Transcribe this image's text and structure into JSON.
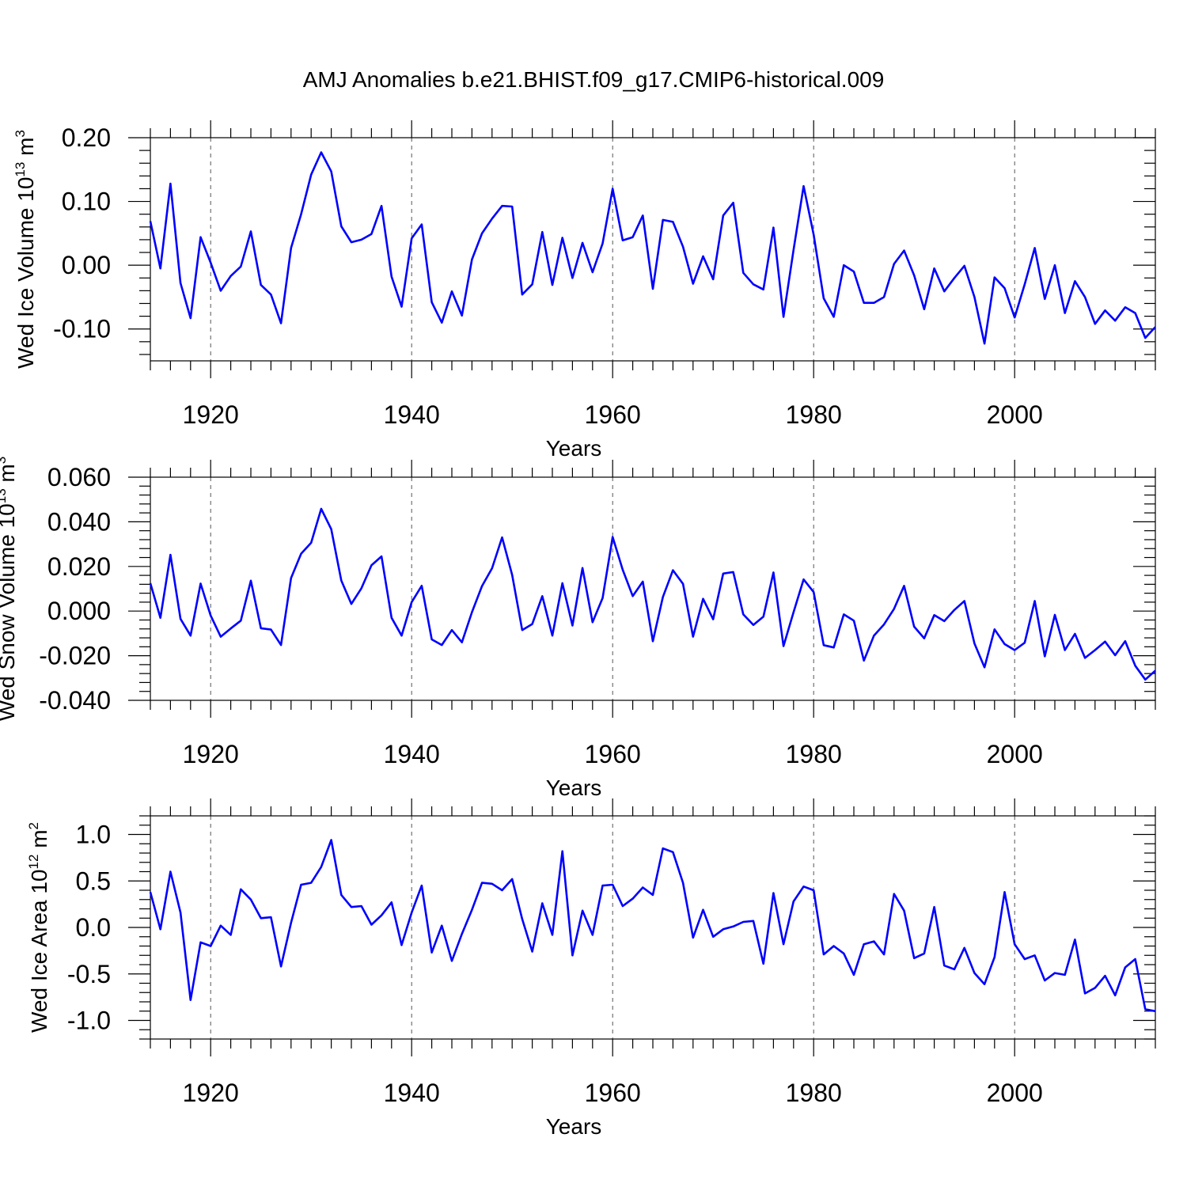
{
  "figure": {
    "title": "AMJ Anomalies b.e21.BHIST.f09_g17.CMIP6-historical.009"
  },
  "chart_data": [
    {
      "type": "line",
      "title": "AMJ Anomalies b.e21.BHIST.f09_g17.CMIP6-historical.009",
      "xlabel": "Years",
      "ylabel": "Wed Ice Volume 10",
      "ylabel_exp": "13",
      "ylabel_unit": " m",
      "ylabel_unit_exp": "3",
      "xlim": [
        1914,
        2014
      ],
      "ylim": [
        -0.15,
        0.2
      ],
      "yticks": [
        -0.1,
        0.0,
        0.1,
        0.2
      ],
      "ytick_labels": [
        "-0.10",
        "0.00",
        "0.10",
        "0.20"
      ],
      "xticks": [
        1920,
        1940,
        1960,
        1980,
        2000
      ],
      "xtick_labels": [
        "1920",
        "1940",
        "1960",
        "1980",
        "2000"
      ],
      "grid_years": [
        1920,
        1940,
        1960,
        1980,
        2000
      ],
      "color": "#0000ff",
      "x_start": 1914,
      "values": [
        0.069,
        -0.005,
        0.128,
        -0.028,
        -0.083,
        0.044,
        0.004,
        -0.04,
        -0.017,
        -0.002,
        0.053,
        -0.031,
        -0.046,
        -0.091,
        0.027,
        0.08,
        0.142,
        0.177,
        0.147,
        0.061,
        0.036,
        0.04,
        0.049,
        0.093,
        -0.018,
        -0.065,
        0.042,
        0.064,
        -0.058,
        -0.09,
        -0.041,
        -0.079,
        0.009,
        0.05,
        0.073,
        0.093,
        0.092,
        -0.046,
        -0.03,
        0.052,
        -0.031,
        0.043,
        -0.02,
        0.035,
        -0.011,
        0.034,
        0.12,
        0.039,
        0.044,
        0.078,
        -0.037,
        0.071,
        0.068,
        0.029,
        -0.029,
        0.014,
        -0.022,
        0.078,
        0.098,
        -0.012,
        -0.03,
        -0.038,
        0.059,
        -0.081,
        0.024,
        0.124,
        0.048,
        -0.052,
        -0.081,
        0.0,
        -0.01,
        -0.059,
        -0.059,
        -0.05,
        0.002,
        0.023,
        -0.016,
        -0.069,
        -0.005,
        -0.041,
        -0.02,
        -0.001,
        -0.05,
        -0.123,
        -0.019,
        -0.036,
        -0.082,
        -0.03,
        0.027,
        -0.053,
        0.0,
        -0.075,
        -0.025,
        -0.05,
        -0.092,
        -0.071,
        -0.087,
        -0.066,
        -0.075,
        -0.114,
        -0.097
      ]
    },
    {
      "type": "line",
      "xlabel": "Years",
      "ylabel": "Wed Snow Volume 10",
      "ylabel_exp": "13",
      "ylabel_unit": " m",
      "ylabel_unit_exp": "3",
      "xlim": [
        1914,
        2014
      ],
      "ylim": [
        -0.04,
        0.06
      ],
      "yticks": [
        -0.04,
        -0.02,
        0.0,
        0.02,
        0.04,
        0.06
      ],
      "ytick_labels": [
        "-0.040",
        "-0.020",
        "0.000",
        "0.020",
        "0.040",
        "0.060"
      ],
      "xticks": [
        1920,
        1940,
        1960,
        1980,
        2000
      ],
      "xtick_labels": [
        "1920",
        "1940",
        "1960",
        "1980",
        "2000"
      ],
      "grid_years": [
        1920,
        1940,
        1960,
        1980,
        2000
      ],
      "color": "#0000ff",
      "x_start": 1914,
      "values": [
        0.0125,
        -0.003,
        0.0252,
        -0.0035,
        -0.011,
        0.0123,
        -0.002,
        -0.0115,
        -0.0078,
        -0.0043,
        0.0136,
        -0.0077,
        -0.0083,
        -0.0152,
        0.0148,
        0.0257,
        0.0306,
        0.0458,
        0.0367,
        0.0137,
        0.0032,
        0.0102,
        0.0205,
        0.0245,
        -0.003,
        -0.011,
        0.004,
        0.0113,
        -0.0127,
        -0.0152,
        -0.0085,
        -0.014,
        -0.0005,
        0.0112,
        0.0192,
        0.033,
        0.0162,
        -0.0085,
        -0.0058,
        0.0067,
        -0.011,
        0.0125,
        -0.0065,
        0.0193,
        -0.005,
        0.0058,
        0.0332,
        0.0185,
        0.0067,
        0.0132,
        -0.0135,
        0.0063,
        0.0183,
        0.0122,
        -0.0115,
        0.0055,
        -0.0037,
        0.0168,
        0.0175,
        -0.0015,
        -0.0062,
        -0.0025,
        0.0173,
        -0.0157,
        -0.0005,
        0.0142,
        0.0085,
        -0.0153,
        -0.0163,
        -0.0015,
        -0.0043,
        -0.0222,
        -0.011,
        -0.006,
        0.001,
        0.0113,
        -0.007,
        -0.0122,
        -0.0018,
        -0.0045,
        0.0005,
        0.0045,
        -0.0145,
        -0.0252,
        -0.0082,
        -0.0148,
        -0.0175,
        -0.0142,
        0.0045,
        -0.0203,
        -0.0017,
        -0.0175,
        -0.0102,
        -0.021,
        -0.0175,
        -0.0137,
        -0.0198,
        -0.0135,
        -0.0245,
        -0.0307,
        -0.0267
      ]
    },
    {
      "type": "line",
      "xlabel": "Years",
      "ylabel": "Wed Ice Area 10",
      "ylabel_exp": "12",
      "ylabel_unit": " m",
      "ylabel_unit_exp": "2",
      "xlim": [
        1914,
        2014
      ],
      "ylim": [
        -1.2,
        1.2
      ],
      "yticks": [
        -1.0,
        -0.5,
        0.0,
        0.5,
        1.0
      ],
      "ytick_labels": [
        "-1.0",
        "-0.5",
        "0.0",
        "0.5",
        "1.0"
      ],
      "xticks": [
        1920,
        1940,
        1960,
        1980,
        2000
      ],
      "xtick_labels": [
        "1920",
        "1940",
        "1960",
        "1980",
        "2000"
      ],
      "grid_years": [
        1920,
        1940,
        1960,
        1980,
        2000
      ],
      "color": "#0000ff",
      "x_start": 1914,
      "values": [
        0.38,
        -0.02,
        0.6,
        0.16,
        -0.78,
        -0.16,
        -0.2,
        0.02,
        -0.08,
        0.41,
        0.3,
        0.1,
        0.11,
        -0.42,
        0.05,
        0.46,
        0.48,
        0.65,
        0.94,
        0.35,
        0.22,
        0.23,
        0.03,
        0.13,
        0.27,
        -0.19,
        0.16,
        0.45,
        -0.27,
        0.02,
        -0.36,
        -0.07,
        0.19,
        0.48,
        0.47,
        0.4,
        0.52,
        0.09,
        -0.26,
        0.26,
        -0.08,
        0.82,
        -0.3,
        0.18,
        -0.08,
        0.45,
        0.46,
        0.23,
        0.31,
        0.43,
        0.35,
        0.85,
        0.81,
        0.48,
        -0.11,
        0.19,
        -0.1,
        -0.02,
        0.01,
        0.06,
        0.07,
        -0.39,
        0.37,
        -0.18,
        0.28,
        0.44,
        0.4,
        -0.29,
        -0.2,
        -0.28,
        -0.51,
        -0.18,
        -0.15,
        -0.29,
        0.36,
        0.18,
        -0.33,
        -0.28,
        0.22,
        -0.41,
        -0.45,
        -0.22,
        -0.49,
        -0.61,
        -0.32,
        0.38,
        -0.18,
        -0.34,
        -0.3,
        -0.57,
        -0.49,
        -0.51,
        -0.13,
        -0.71,
        -0.65,
        -0.52,
        -0.73,
        -0.43,
        -0.34,
        -0.88,
        -0.9
      ]
    }
  ]
}
